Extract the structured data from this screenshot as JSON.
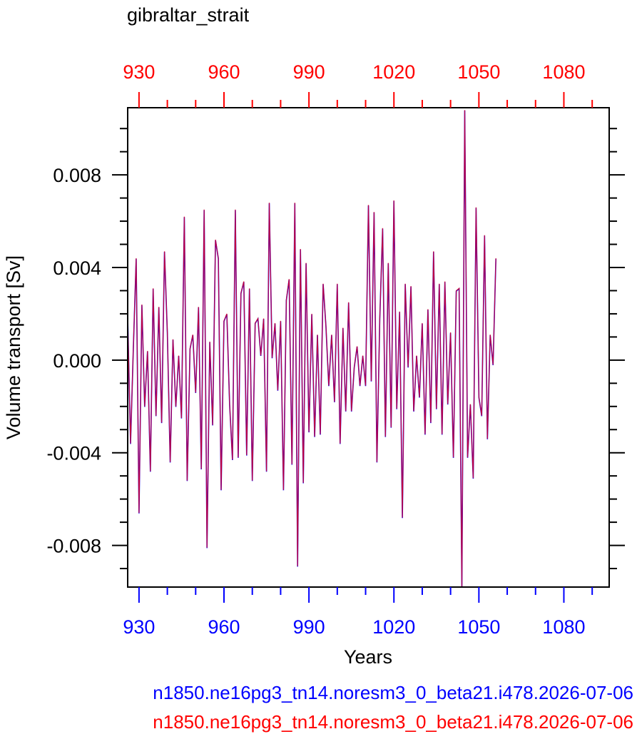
{
  "chart_data": {
    "type": "line",
    "title": "gibraltar_strait",
    "xlabel": "Years",
    "ylabel": "Volume transport [Sv]",
    "xlim": [
      926,
      1096
    ],
    "ylim": [
      -0.0098,
      0.0109
    ],
    "x_ticks": [
      930,
      960,
      990,
      1020,
      1050,
      1080
    ],
    "x_tick_labels": [
      "930",
      "960",
      "990",
      "1020",
      "1050",
      "1080"
    ],
    "y_ticks": [
      -0.008,
      -0.004,
      0.0,
      0.004,
      0.008
    ],
    "y_tick_labels": [
      "-0.008",
      "-0.004",
      "0.000",
      "0.004",
      "0.008"
    ],
    "grid": false,
    "x_start": 926,
    "x_step": 1,
    "series": [
      {
        "name": "n1850.ne16pg3_tn14.noresm3_0_beta21.i478.2026-07-06",
        "color": "#0000ff",
        "values": [
          0.0019,
          -0.0036,
          0.0005,
          0.0044,
          -0.0066,
          0.0024,
          -0.002,
          0.0004,
          -0.0048,
          0.0031,
          -0.0024,
          0.0023,
          -0.0027,
          0.0047,
          0.0012,
          -0.0044,
          0.0009,
          -0.002,
          0.0002,
          -0.0025,
          0.0062,
          -0.0052,
          0.0005,
          0.0011,
          -0.0014,
          0.0023,
          -0.0047,
          0.0065,
          -0.0081,
          0.0008,
          -0.0028,
          0.0052,
          0.0044,
          -0.0056,
          0.0017,
          0.002,
          -0.0019,
          -0.0043,
          0.0065,
          -0.0042,
          0.0029,
          0.0034,
          -0.0041,
          0.0031,
          -0.0052,
          0.0016,
          0.0018,
          0.0002,
          0.0018,
          -0.0048,
          0.0068,
          0.0001,
          0.0016,
          -0.0013,
          0.0017,
          -0.0056,
          0.0026,
          0.0035,
          -0.0045,
          0.0068,
          -0.0089,
          0.0048,
          -0.0053,
          0.0042,
          -0.0031,
          0.002,
          -0.0033,
          0.0011,
          -0.0032,
          0.0033,
          0.0015,
          -0.0011,
          0.0011,
          -0.0018,
          0.0033,
          -0.0036,
          0.0014,
          -0.0022,
          0.0025,
          -0.0022,
          -0.0003,
          0.0006,
          -0.0011,
          0.0002,
          -0.0011,
          0.0067,
          -0.0009,
          0.0064,
          -0.0044,
          0.0018,
          0.0057,
          -0.0033,
          0.0042,
          -0.0029,
          0.0069,
          -0.0021,
          0.0021,
          -0.0068,
          0.0033,
          -0.0003,
          0.0032,
          -0.0022,
          0.0002,
          -0.0016,
          0.0016,
          -0.0032,
          0.0022,
          -0.0027,
          0.0047,
          -0.0021,
          0.0033,
          -0.0032,
          0.0034,
          -0.0019,
          0.0012,
          -0.0042,
          0.003,
          0.0031,
          -0.0098,
          0.0108,
          -0.0042,
          -0.0019,
          -0.0051,
          0.0066,
          -0.0016,
          -0.0024,
          0.0054,
          -0.0034,
          0.0011,
          -0.0002,
          0.0044
        ]
      },
      {
        "name": "n1850.ne16pg3_tn14.noresm3_0_beta21.i478.2026-07-06",
        "color": "#ff0000",
        "values": [
          0.0019,
          -0.0036,
          0.0005,
          0.0044,
          -0.0066,
          0.0024,
          -0.002,
          0.0004,
          -0.0048,
          0.0031,
          -0.0024,
          0.0023,
          -0.0027,
          0.0047,
          0.0012,
          -0.0044,
          0.0009,
          -0.002,
          0.0002,
          -0.0025,
          0.0062,
          -0.0052,
          0.0005,
          0.0011,
          -0.0014,
          0.0023,
          -0.0047,
          0.0065,
          -0.0081,
          0.0008,
          -0.0028,
          0.0052,
          0.0044,
          -0.0056,
          0.0017,
          0.002,
          -0.0019,
          -0.0043,
          0.0065,
          -0.0042,
          0.0029,
          0.0034,
          -0.0041,
          0.0031,
          -0.0052,
          0.0016,
          0.0018,
          0.0002,
          0.0018,
          -0.0048,
          0.0068,
          0.0001,
          0.0016,
          -0.0013,
          0.0017,
          -0.0056,
          0.0026,
          0.0035,
          -0.0045,
          0.0068,
          -0.0089,
          0.0048,
          -0.0053,
          0.0042,
          -0.0031,
          0.002,
          -0.0033,
          0.0011,
          -0.0032,
          0.0033,
          0.0015,
          -0.0011,
          0.0011,
          -0.0018,
          0.0033,
          -0.0036,
          0.0014,
          -0.0022,
          0.0025,
          -0.0022,
          -0.0003,
          0.0006,
          -0.0011,
          0.0002,
          -0.0011,
          0.0067,
          -0.0009,
          0.0064,
          -0.0044,
          0.0018,
          0.0057,
          -0.0033,
          0.0042,
          -0.0029,
          0.0069,
          -0.0021,
          0.0021,
          -0.0068,
          0.0033,
          -0.0003,
          0.0032,
          -0.0022,
          0.0002,
          -0.0016,
          0.0016,
          -0.0032,
          0.0022,
          -0.0027,
          0.0047,
          -0.0021,
          0.0033,
          -0.0032,
          0.0034,
          -0.0019,
          0.0012,
          -0.0042,
          0.003,
          0.0031,
          -0.0098,
          0.0108,
          -0.0042,
          -0.0019,
          -0.0051,
          0.0066,
          -0.0016,
          -0.0024,
          0.0054,
          -0.0034,
          0.0011,
          -0.0002,
          0.0044
        ]
      }
    ],
    "colors": {
      "bottom_axis_labels": "#0000ff",
      "top_axis_labels": "#ff0000",
      "line_blue": "#0000ff",
      "line_red": "#ff0000"
    }
  }
}
